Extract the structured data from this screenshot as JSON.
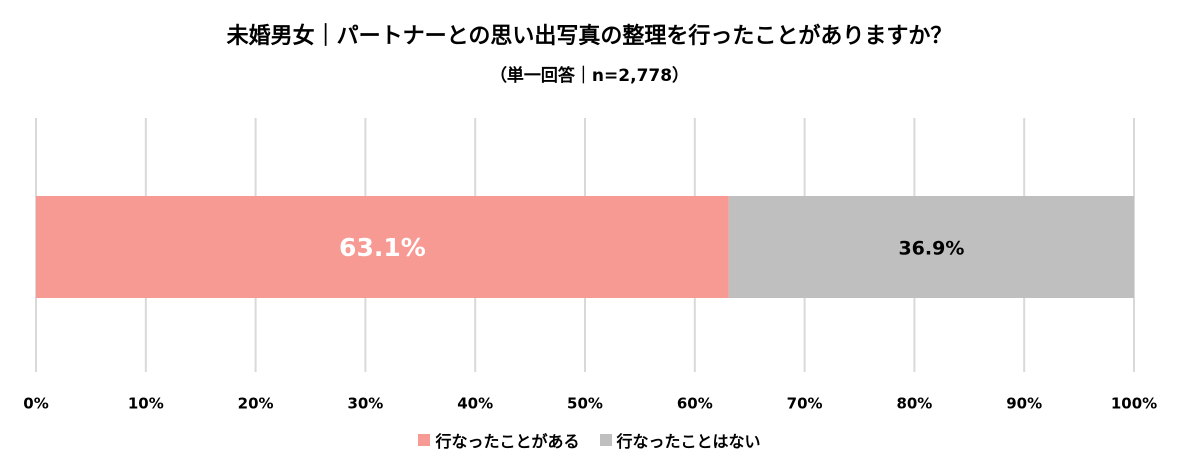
{
  "chart_data": {
    "type": "bar",
    "orientation": "horizontal",
    "stacked": true,
    "title": "未婚男女｜パートナーとの思い出写真の整理を行ったことがありますか？",
    "subtitle": "（単一回答｜n=2,778）",
    "xlabel": "",
    "ylabel": "",
    "xlim": [
      0,
      100
    ],
    "x_ticks": [
      "0%",
      "10%",
      "20%",
      "30%",
      "40%",
      "50%",
      "60%",
      "70%",
      "80%",
      "90%",
      "100%"
    ],
    "grid": true,
    "legend": "bottom",
    "series": [
      {
        "name": "行なったことがある",
        "values": [
          63.1
        ],
        "label": "63.1%",
        "color": "#F79A93",
        "label_color": "#ffffff"
      },
      {
        "name": "行なったことはない",
        "values": [
          36.9
        ],
        "label": "36.9%",
        "color": "#BFBFBF",
        "label_color": "#000000"
      }
    ]
  }
}
